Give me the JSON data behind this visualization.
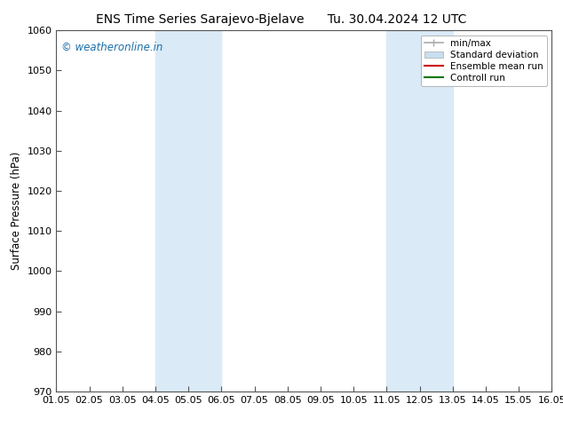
{
  "title_left": "ENS Time Series Sarajevo-Bjelave",
  "title_right": "Tu. 30.04.2024 12 UTC",
  "ylabel": "Surface Pressure (hPa)",
  "xlabel": "",
  "ylim": [
    970,
    1060
  ],
  "yticks": [
    970,
    980,
    990,
    1000,
    1010,
    1020,
    1030,
    1040,
    1050,
    1060
  ],
  "xtick_labels": [
    "01.05",
    "02.05",
    "03.05",
    "04.05",
    "05.05",
    "06.05",
    "07.05",
    "08.05",
    "09.05",
    "10.05",
    "11.05",
    "12.05",
    "13.05",
    "14.05",
    "15.05",
    "16.05"
  ],
  "x_positions": [
    0,
    1,
    2,
    3,
    4,
    5,
    6,
    7,
    8,
    9,
    10,
    11,
    12,
    13,
    14,
    15
  ],
  "xlim": [
    0,
    15
  ],
  "shade_regions": [
    {
      "x_start": 3,
      "x_end": 5,
      "color": "#daeaf7"
    },
    {
      "x_start": 10,
      "x_end": 12,
      "color": "#daeaf7"
    }
  ],
  "watermark_text": "© weatheronline.in",
  "watermark_color": "#1a6fa8",
  "watermark_fontsize": 8.5,
  "background_color": "#ffffff",
  "legend_minmax_color": "#aaaaaa",
  "legend_std_color": "#c8dff0",
  "legend_ens_color": "#cc0000",
  "legend_ctrl_color": "#007700",
  "title_fontsize": 10,
  "tick_fontsize": 8,
  "ylabel_fontsize": 8.5,
  "font_family": "DejaVu Sans"
}
